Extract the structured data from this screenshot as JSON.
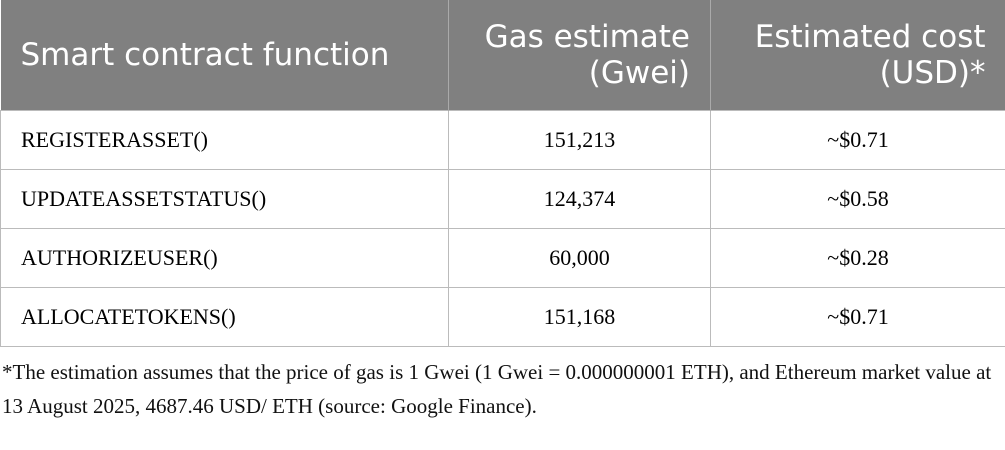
{
  "table": {
    "header": [
      "Smart contract function",
      "Gas estimate (Gwei)",
      "Estimated cost (USD)*"
    ],
    "rows": [
      [
        "REGISTERASSET()",
        "151,213",
        "~$0.71"
      ],
      [
        "UPDATEASSETSTATUS()",
        "124,374",
        "~$0.58"
      ],
      [
        "AUTHORIZEUSER()",
        "60,000",
        "~$0.28"
      ],
      [
        "ALLOCATETOKENS()",
        "151,168",
        "~$0.71"
      ]
    ],
    "footnote": "*The estimation assumes that the price of gas is 1 Gwei (1 Gwei = 0.000000001 ETH), and Ethereum market value at 13 August 2025, 4687.46 USD/ ETH (source: Google Finance)."
  }
}
